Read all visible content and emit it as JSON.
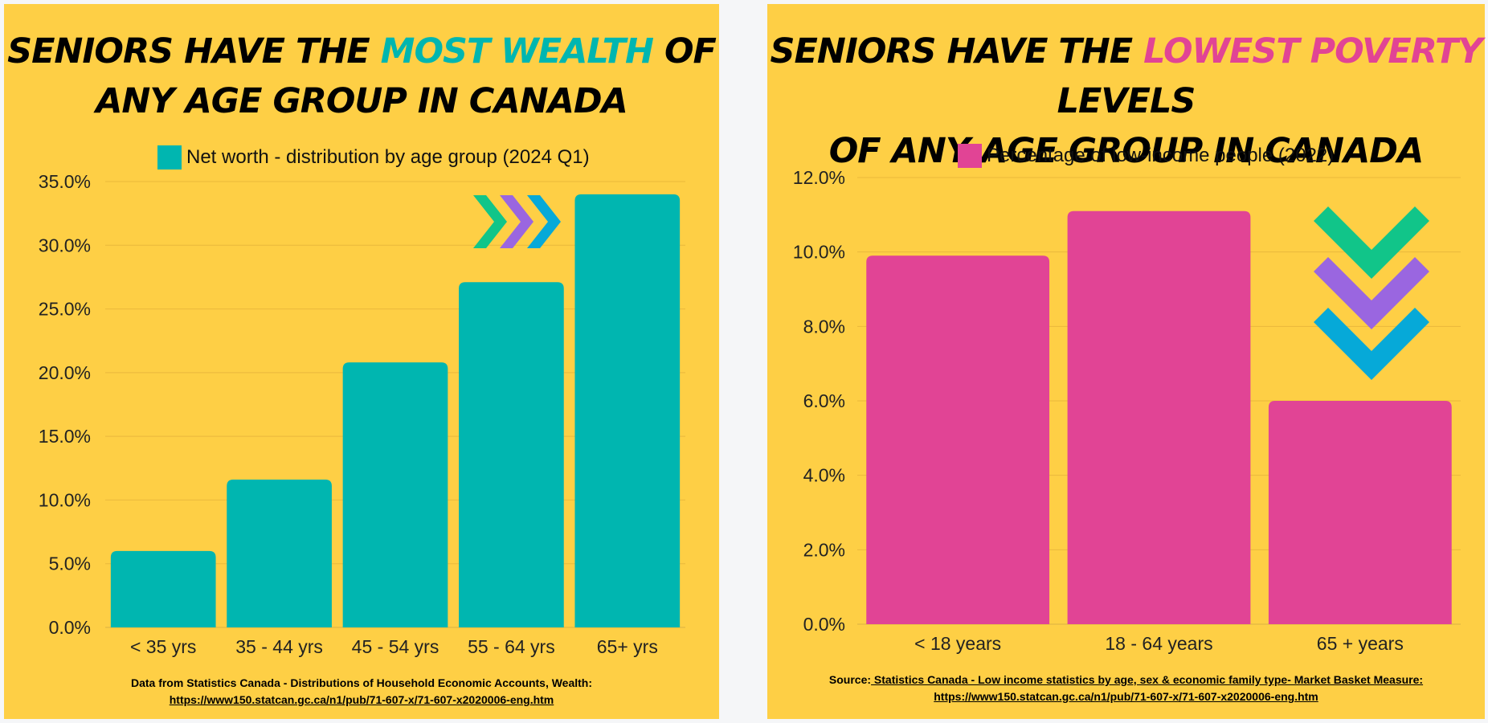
{
  "colors": {
    "background": "#fecf45",
    "teal": "#00b6b0",
    "pink": "#e14495",
    "green": "#11c589",
    "purple": "#9a66e0",
    "blue": "#06a9d8"
  },
  "left": {
    "title": {
      "line1_a": "SENIORS HAVE THE ",
      "line1_b": "MOST WEALTH",
      "line1_c": " OF",
      "line2": "ANY AGE GROUP IN CANADA"
    },
    "legend_label": "Net worth - distribution by age group (2024 Q1)",
    "source_line1": "Data from Statistics Canada - Distributions of Household Economic Accounts, Wealth:",
    "source_line2": "https://www150.statcan.gc.ca/n1/pub/71-607-x/71-607-x2020006-eng.htm",
    "arrow_icons": [
      "chevron-right-icon",
      "chevron-right-icon",
      "chevron-right-icon"
    ]
  },
  "right": {
    "title": {
      "line1_a": "SENIORS HAVE THE ",
      "line1_b": "LOWEST POVERTY",
      "line1_c": " LEVELS",
      "line2": "OF ANY AGE GROUP IN CANADA"
    },
    "legend_label": "Percentage of low-income people (2022)",
    "source_prefix": "Source:",
    "source_line1": " Statistics Canada - Low income statistics by age, sex & economic family type- Market Basket Measure:",
    "source_line2": "https://www150.statcan.gc.ca/n1/pub/71-607-x/71-607-x2020006-eng.htm",
    "arrow_icons": [
      "chevron-down-icon",
      "chevron-down-icon",
      "chevron-down-icon"
    ]
  },
  "chart_data": [
    {
      "type": "bar",
      "title": "SENIORS HAVE THE MOST WEALTH OF ANY AGE GROUP IN CANADA",
      "categories": [
        "< 35 yrs",
        "35 - 44 yrs",
        "45 - 54 yrs",
        "55 - 64 yrs",
        "65+ yrs"
      ],
      "series": [
        {
          "name": "Net worth - distribution by age group (2024 Q1)",
          "values": [
            6.0,
            11.6,
            20.8,
            27.1,
            34.0
          ]
        }
      ],
      "yticks": [
        "0.0%",
        "5.0%",
        "10.0%",
        "15.0%",
        "20.0%",
        "25.0%",
        "30.0%",
        "35.0%"
      ],
      "ylim": [
        0,
        35
      ],
      "grid": true,
      "legend_position": "top"
    },
    {
      "type": "bar",
      "title": "SENIORS HAVE THE LOWEST POVERTY LEVELS OF ANY AGE GROUP IN CANADA",
      "categories": [
        "< 18 years",
        "18 - 64 years",
        "65 + years"
      ],
      "series": [
        {
          "name": "Percentage of low-income people (2022)",
          "values": [
            9.9,
            11.1,
            6.0
          ]
        }
      ],
      "yticks": [
        "0.0%",
        "2.0%",
        "4.0%",
        "6.0%",
        "8.0%",
        "10.0%",
        "12.0%"
      ],
      "ylim": [
        0,
        12
      ],
      "grid": true,
      "legend_position": "top"
    }
  ]
}
